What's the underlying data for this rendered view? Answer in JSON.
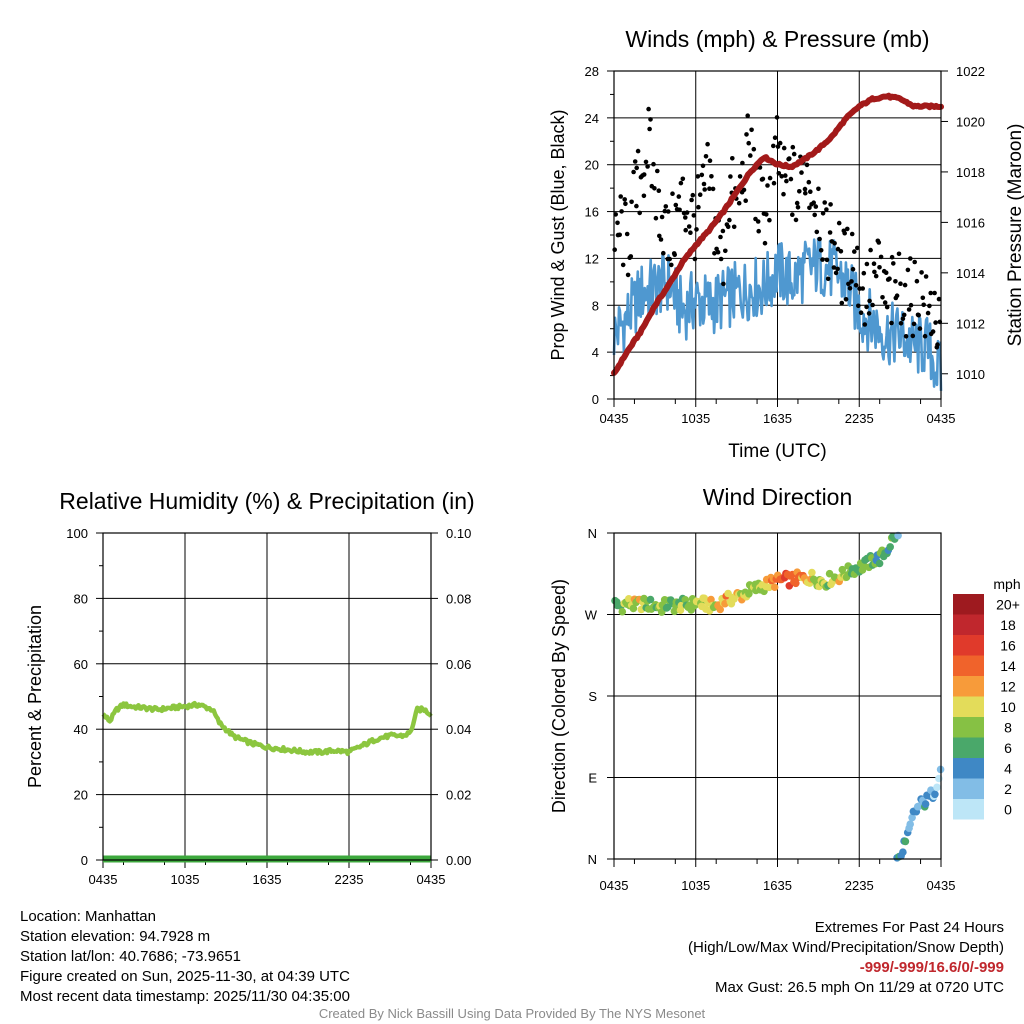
{
  "chart_data": [
    {
      "id": "winds",
      "type": "line",
      "title": "Winds (mph) & Pressure (mb)",
      "xlabel": "Time (UTC)",
      "ylabel": "Prop Wind & Gust (Blue, Black)",
      "ylabel_right": "Station Pressure (Maroon)",
      "x_ticks": [
        "0435",
        "1035",
        "1635",
        "2235",
        "0435"
      ],
      "x_range_hours": [
        0,
        24
      ],
      "ylim": [
        0,
        28
      ],
      "y_ticks": [
        "0",
        "4",
        "8",
        "12",
        "16",
        "20",
        "24",
        "28"
      ],
      "ylim_right": [
        1009,
        1022
      ],
      "y_ticks_right": [
        "1010",
        "1012",
        "1014",
        "1016",
        "1018",
        "1020",
        "1022"
      ],
      "grid": true,
      "series": [
        {
          "name": "Prop Wind",
          "color": "#4f98d0",
          "x": [
            0,
            1,
            2,
            3,
            4,
            5,
            6,
            7,
            8,
            9,
            10,
            11,
            12,
            13,
            14,
            15,
            16,
            17,
            18,
            19,
            20,
            21,
            22,
            23,
            24
          ],
          "values": [
            5.5,
            7,
            9,
            9.5,
            10,
            7.5,
            8.5,
            8,
            8.5,
            9,
            9.5,
            9.5,
            11,
            10,
            11,
            11.5,
            11,
            10,
            7.5,
            6.5,
            5.5,
            5.5,
            4.5,
            4.5,
            2
          ]
        },
        {
          "name": "Gust",
          "color": "#000000",
          "x": [
            0,
            0.5,
            1,
            1.5,
            2,
            2.5,
            3,
            3.5,
            4,
            4.5,
            5,
            5.5,
            6,
            6.5,
            7,
            7.5,
            8,
            8.5,
            9,
            9.5,
            10,
            10.5,
            11,
            11.5,
            12,
            12.5,
            13,
            13.5,
            14,
            14.5,
            15,
            15.5,
            16,
            16.5,
            17,
            17.5,
            18,
            18.5,
            19,
            19.5,
            20,
            20.5,
            21,
            21.5,
            22,
            22.5,
            23,
            23.5,
            24
          ],
          "values": [
            12,
            15,
            13,
            17,
            19,
            22,
            18,
            16,
            13,
            15,
            17,
            16,
            15,
            17,
            19,
            14,
            12,
            18,
            16,
            19,
            22,
            17,
            16,
            18,
            21,
            18,
            19,
            17,
            20,
            18,
            17,
            13,
            14,
            12,
            11,
            13,
            10,
            9,
            10,
            11,
            8,
            9,
            10,
            8,
            9,
            9,
            7,
            8,
            4
          ]
        },
        {
          "name": "Station Pressure",
          "color": "#a31a1a",
          "axis": "right",
          "x": [
            0,
            1,
            2,
            3,
            4,
            5,
            6,
            7,
            8,
            9,
            10,
            11,
            12,
            13,
            14,
            15,
            16,
            17,
            18,
            19,
            20,
            21,
            22,
            23,
            24
          ],
          "values": [
            1010,
            1010.9,
            1011.7,
            1012.7,
            1013.5,
            1014.4,
            1015.1,
            1015.7,
            1016.4,
            1017.2,
            1018,
            1018.6,
            1018.3,
            1018.2,
            1018.5,
            1018.9,
            1019.4,
            1020.1,
            1020.6,
            1020.9,
            1021.0,
            1020.9,
            1020.6,
            1020.6,
            1020.6
          ]
        }
      ]
    },
    {
      "id": "humidity",
      "type": "line",
      "title": "Relative Humidity (%) & Precipitation (in)",
      "ylabel": "Percent & Precipitation",
      "x_ticks": [
        "0435",
        "1035",
        "1635",
        "2235",
        "0435"
      ],
      "x_range_hours": [
        0,
        24
      ],
      "ylim": [
        0,
        100
      ],
      "y_ticks": [
        "0",
        "20",
        "40",
        "60",
        "80",
        "100"
      ],
      "ylim_right": [
        0,
        0.1
      ],
      "y_ticks_right": [
        "0.00",
        "0.02",
        "0.04",
        "0.06",
        "0.08",
        "0.10"
      ],
      "grid": true,
      "series": [
        {
          "name": "Relative Humidity",
          "color": "#8cc63f",
          "x": [
            0,
            0.5,
            1,
            1.5,
            2,
            3,
            4,
            5,
            6,
            7,
            8,
            8.5,
            9,
            9.5,
            10,
            11,
            12,
            13,
            14,
            15,
            16,
            17,
            18,
            19,
            20,
            21,
            22,
            22.5,
            23,
            23.5,
            24
          ],
          "values": [
            44.5,
            42.5,
            46,
            47.5,
            47,
            46.5,
            46,
            46.5,
            47,
            47.5,
            46,
            42,
            40,
            38,
            37,
            35.5,
            34.5,
            34,
            33.5,
            33,
            33,
            33.5,
            33,
            35,
            37,
            38,
            38,
            39,
            46,
            46,
            44.5
          ]
        },
        {
          "name": "Precipitation",
          "color": "#3da83d",
          "axis": "right",
          "x": [
            0,
            24
          ],
          "values": [
            0,
            0
          ]
        }
      ]
    },
    {
      "id": "direction",
      "type": "scatter",
      "title": "Wind Direction",
      "ylabel": "Direction (Colored By Speed)",
      "x_ticks": [
        "0435",
        "1035",
        "1635",
        "2235",
        "0435"
      ],
      "x_range_hours": [
        0,
        24
      ],
      "ylim_deg": [
        0,
        360
      ],
      "y_ticks": [
        "N",
        "E",
        "S",
        "W",
        "N"
      ],
      "legend": {
        "title": "mph",
        "labels": [
          "20+",
          "18",
          "16",
          "14",
          "12",
          "10",
          "8",
          "6",
          "4",
          "2",
          "0"
        ],
        "colors": [
          "#9e1a1f",
          "#c0272d",
          "#e03a2b",
          "#f0632b",
          "#f79b3a",
          "#e3dc5a",
          "#86c144",
          "#4aa86a",
          "#3f88c5",
          "#82bde6",
          "#bde6f7"
        ]
      },
      "series": [
        {
          "name": "Wind Direction",
          "x": [
            0,
            0.5,
            1,
            1.5,
            2,
            2.5,
            3,
            3.5,
            4,
            4.5,
            5,
            5.5,
            6,
            6.5,
            7,
            7.5,
            8,
            8.5,
            9,
            9.5,
            10,
            10.5,
            11,
            11.5,
            12,
            12.5,
            13,
            13.5,
            14,
            14.5,
            15,
            15.5,
            16,
            16.5,
            17,
            17.5,
            18,
            18.5,
            19,
            19.5,
            20,
            20.5,
            21,
            21.5,
            22,
            22.5,
            23,
            23.5,
            24
          ],
          "values_deg": [
            281,
            279,
            283,
            280,
            282,
            281,
            280,
            278,
            282,
            279,
            281,
            280,
            283,
            282,
            280,
            279,
            285,
            287,
            290,
            292,
            297,
            299,
            302,
            305,
            307,
            309,
            308,
            310,
            309,
            311,
            308,
            306,
            310,
            312,
            315,
            320,
            322,
            325,
            330,
            332,
            340,
            355,
            10,
            20,
            50,
            60,
            65,
            75,
            100
          ],
          "speeds": [
            5,
            7,
            9,
            10,
            9,
            8,
            7,
            8,
            6,
            7,
            8,
            7,
            9,
            10,
            11,
            10,
            12,
            11,
            10,
            9,
            9,
            8,
            10,
            12,
            13,
            15,
            14,
            13,
            11,
            10,
            9,
            8,
            9,
            10,
            8,
            7,
            6,
            6,
            7,
            6,
            5,
            6,
            4,
            3,
            3,
            4,
            3,
            2,
            1
          ]
        }
      ]
    }
  ],
  "station_info": {
    "location": "Location: Manhattan",
    "elevation": "Station elevation: 94.7928 m",
    "latlon": "Station lat/lon: 40.7686; -73.9651",
    "created": "Figure created on Sun, 2025-11-30, at 04:39 UTC",
    "latest": "Most recent data timestamp: 2025/11/30 04:35:00"
  },
  "extremes": {
    "title": "Extremes For Past 24 Hours",
    "subtitle": "(High/Low/Max Wind/Precipitation/Snow Depth)",
    "values": "-999/-999/16.6/0/-999",
    "max_gust": "Max Gust: 26.5 mph On 11/29 at 0720 UTC"
  },
  "credit": "Created By Nick Bassill Using Data Provided By The NYS Mesonet"
}
